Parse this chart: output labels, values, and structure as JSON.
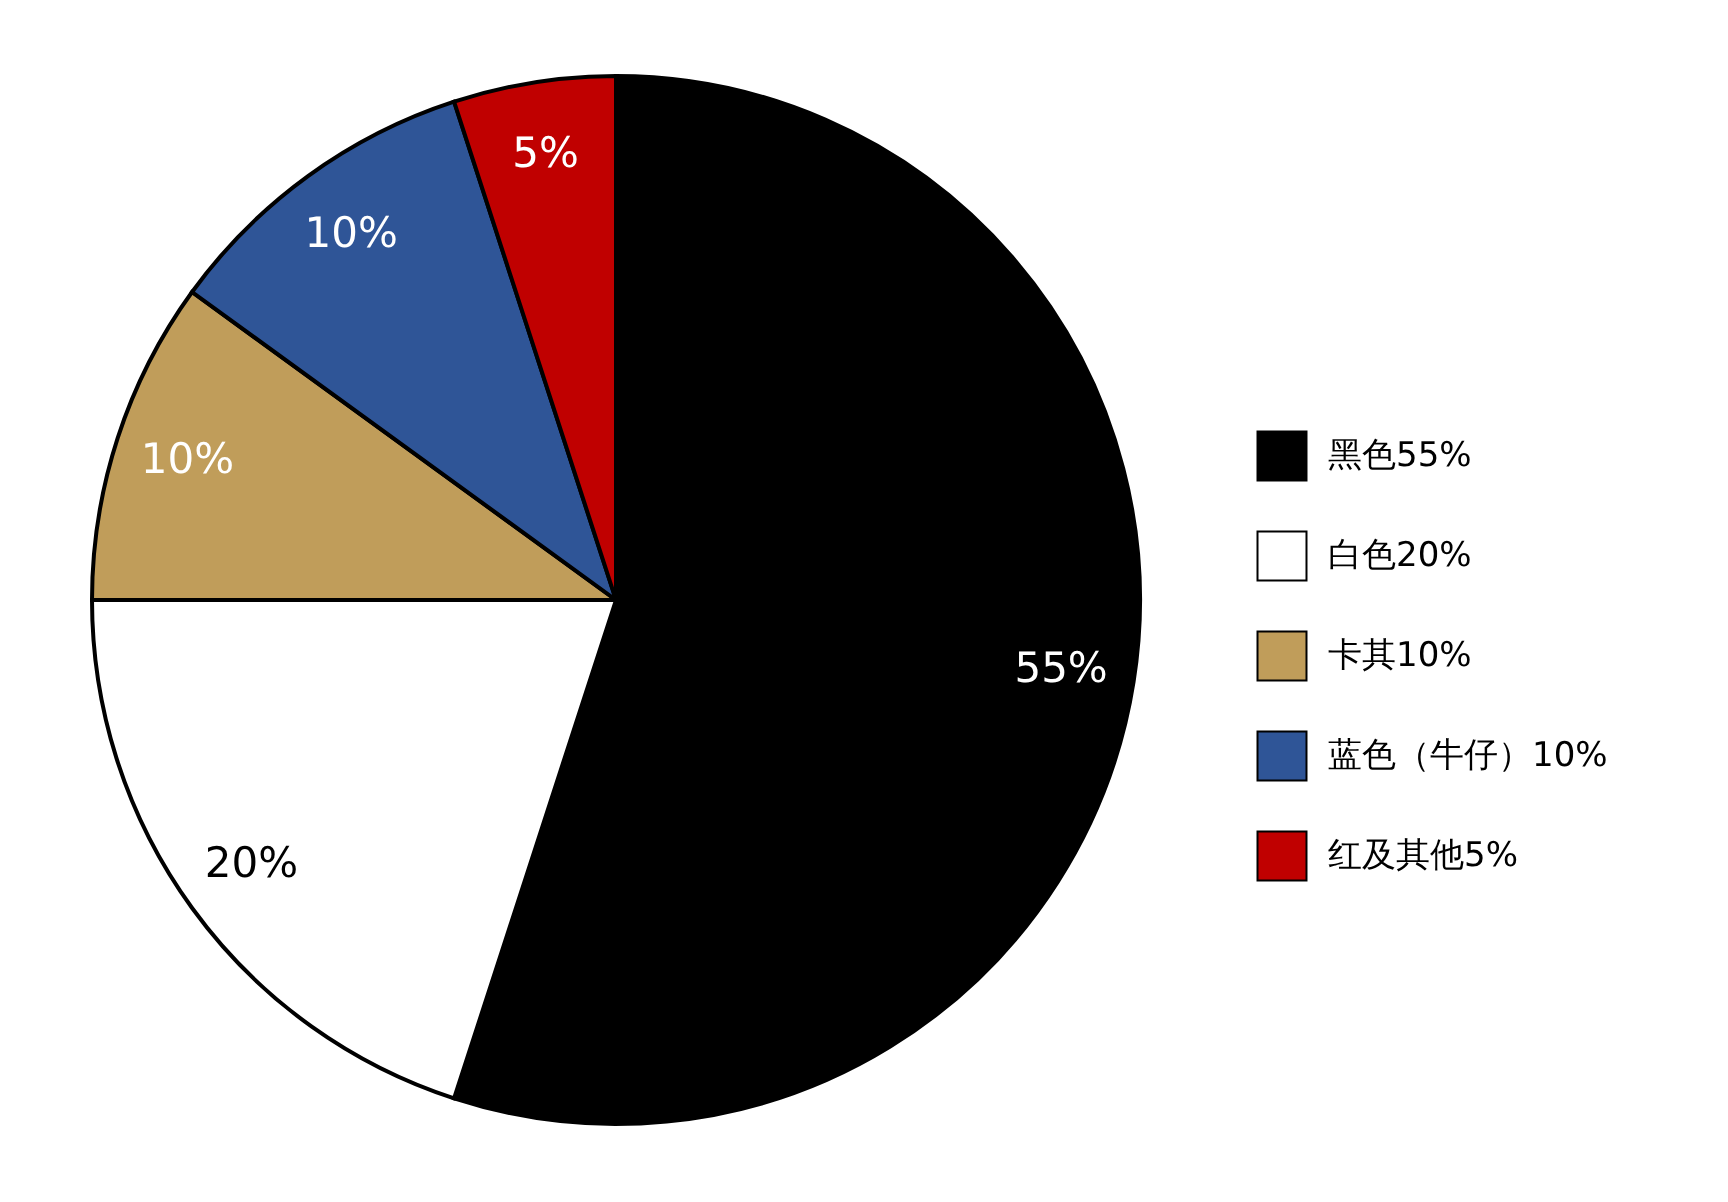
{
  "chart_data": {
    "type": "pie",
    "categories": [
      "黑色55%",
      "白色20%",
      "卡其10%",
      "蓝色（牛仔）10%",
      "红及其他5%"
    ],
    "values": [
      55,
      20,
      10,
      10,
      5
    ],
    "colors": [
      "#000000",
      "#ffffff",
      "#c09d5a",
      "#2f5597",
      "#c00000"
    ],
    "value_labels": [
      "55%",
      "20%",
      "10%",
      "10%",
      "5%"
    ],
    "legend": "right"
  }
}
